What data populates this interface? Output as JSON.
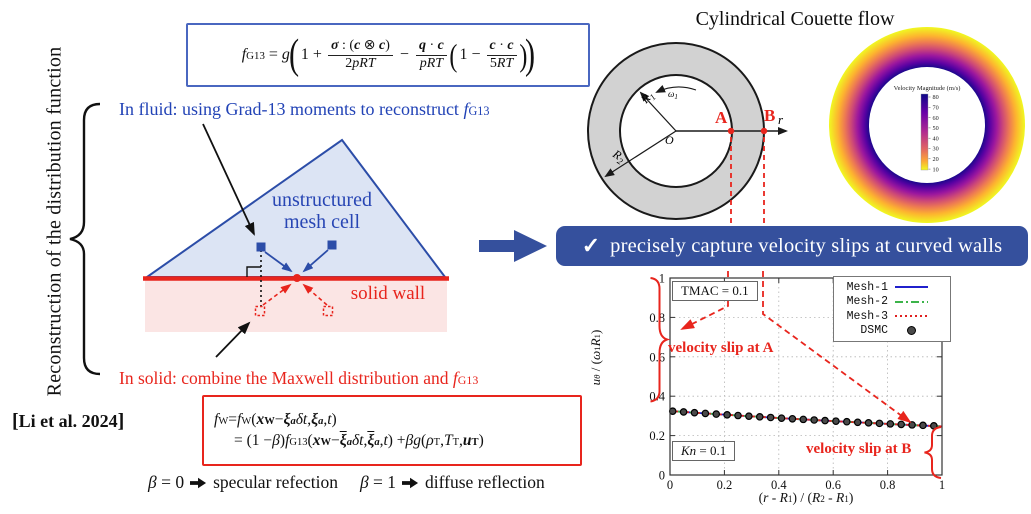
{
  "left_panel": {
    "vertical_label": "Reconstruction of the distribution function",
    "citation_open": "[",
    "citation": "Li et al. 2024",
    "citation_close": "]"
  },
  "fluid_note": {
    "lead": "In fluid: using Grad-13 moments to reconstruct ",
    "fsegs": [
      {
        "t": "f",
        "i": 1,
        "sub": "G13"
      }
    ]
  },
  "solid_note": {
    "lead": "In solid: combine the Maxwell distribution and ",
    "fsegs": [
      {
        "t": "f",
        "i": 1,
        "sub": "G13"
      }
    ]
  },
  "diagram": {
    "mesh_line1": "unstructured",
    "mesh_line2": "mesh cell",
    "wall_label": "solid wall"
  },
  "equations": {
    "g13": {
      "lead": [
        {
          "t": "f",
          "i": 1,
          "sub": "G13"
        },
        {
          "t": " = "
        },
        {
          "t": "g",
          "i": 1
        }
      ],
      "one_plus": "1 +",
      "frac1": {
        "num": [
          {
            "t": "σ",
            "i": 1,
            "b": 1
          },
          {
            "t": " : ("
          },
          {
            "t": "c",
            "i": 1,
            "b": 1
          },
          {
            "t": " ⊗ "
          },
          {
            "t": "c",
            "i": 1,
            "b": 1
          },
          {
            "t": ")"
          }
        ],
        "den": [
          {
            "t": "2"
          },
          {
            "t": "pRT",
            "i": 1
          }
        ]
      },
      "minus": "−",
      "frac2": {
        "num": [
          {
            "t": "q",
            "i": 1,
            "b": 1
          },
          {
            "t": " · "
          },
          {
            "t": "c",
            "i": 1,
            "b": 1
          }
        ],
        "den": [
          {
            "t": "pRT",
            "i": 1
          }
        ]
      },
      "one_minus": "1 −",
      "frac3": {
        "num": [
          {
            "t": "c",
            "i": 1,
            "b": 1
          },
          {
            "t": " · "
          },
          {
            "t": "c",
            "i": 1,
            "b": 1
          }
        ],
        "den": [
          {
            "t": "5"
          },
          {
            "t": "RT",
            "i": 1
          }
        ]
      }
    },
    "wall": {
      "line1": [
        {
          "t": "f",
          "i": 1,
          "sub": "W"
        },
        {
          "t": " = "
        },
        {
          "t": "f",
          "i": 1,
          "sub": "W"
        },
        {
          "t": "("
        },
        {
          "t": "x",
          "i": 1,
          "b": 1,
          "sub": "W"
        },
        {
          "t": " − "
        },
        {
          "t": "ξ",
          "i": 1,
          "b": 1,
          "sub": "a",
          "subi": 1
        },
        {
          "t": "δt",
          "i": 1
        },
        {
          "t": ", "
        },
        {
          "t": "ξ",
          "i": 1,
          "b": 1,
          "sub": "a",
          "subi": 1
        },
        {
          "t": ", "
        },
        {
          "t": "t",
          "i": 1
        },
        {
          "t": ")"
        }
      ],
      "line2": [
        {
          "t": "= (1 − "
        },
        {
          "t": "β",
          "i": 1
        },
        {
          "t": ")"
        },
        {
          "t": "f",
          "i": 1,
          "sub": "G13"
        },
        {
          "t": "("
        },
        {
          "t": "x",
          "i": 1,
          "b": 1,
          "sub": "W"
        },
        {
          "t": " − "
        },
        {
          "t": "ξ",
          "i": 1,
          "b": 1,
          "bar": 1,
          "sub": "a",
          "subi": 1
        },
        {
          "t": "δt",
          "i": 1
        },
        {
          "t": ", "
        },
        {
          "t": "ξ",
          "i": 1,
          "b": 1,
          "bar": 1,
          "sub": "a",
          "subi": 1
        },
        {
          "t": ", "
        },
        {
          "t": "t",
          "i": 1
        },
        {
          "t": ") + "
        },
        {
          "t": "βg",
          "i": 1
        },
        {
          "t": "("
        },
        {
          "t": "ρ",
          "i": 1,
          "sub": "T"
        },
        {
          "t": ", "
        },
        {
          "t": "T",
          "i": 1,
          "sub": "T"
        },
        {
          "t": ", "
        },
        {
          "t": "u",
          "i": 1,
          "b": 1,
          "sub": "T"
        },
        {
          "t": ")"
        }
      ]
    },
    "beta": {
      "b0": [
        {
          "t": "β",
          "i": 1
        },
        {
          "t": " = 0"
        }
      ],
      "spec": "specular refection",
      "b1": [
        {
          "t": "β",
          "i": 1
        },
        {
          "t": " = 1"
        }
      ],
      "diff": "diffuse reflection"
    }
  },
  "couette": {
    "title": "Cylindrical Couette flow",
    "labels": {
      "o": "O",
      "a": "A",
      "b": "B",
      "r": "r",
      "r1": "R",
      "r1_sub": "1",
      "r2": "R",
      "r2_sub": "2",
      "omega": "ω",
      "omega_sub": "1"
    }
  },
  "colormap": {
    "title": "Velocity Magnitude (m/s)",
    "ticks": [
      80,
      70,
      60,
      50,
      40,
      30,
      20,
      10
    ]
  },
  "banner": {
    "check": "✓",
    "text": "precisely capture velocity slips at curved walls"
  },
  "chart_data": {
    "type": "line",
    "title": "",
    "xlabel": "(r - R1) / (R2 - R1)",
    "ylabel": "u_theta / (omega_1 R_1)",
    "xlabel_segs": [
      {
        "t": "("
      },
      {
        "t": "r",
        "i": 1
      },
      {
        "t": " - "
      },
      {
        "t": "R",
        "i": 1,
        "sub": "1"
      },
      {
        "t": ") / ("
      },
      {
        "t": "R",
        "i": 1,
        "sub": "2"
      },
      {
        "t": " - "
      },
      {
        "t": "R",
        "i": 1,
        "sub": "1"
      },
      {
        "t": ")"
      }
    ],
    "ylabel_segs": [
      {
        "t": "u",
        "i": 1,
        "sub": "θ",
        "subi": 1
      },
      {
        "t": " / ("
      },
      {
        "t": "ω",
        "i": 1,
        "sub": "1"
      },
      {
        "t": "R",
        "i": 1,
        "sub": "1"
      },
      {
        "t": ")"
      }
    ],
    "xlim": [
      0,
      1
    ],
    "ylim": [
      0,
      1
    ],
    "xticks": [
      0,
      0.2,
      0.4,
      0.6,
      0.8,
      1
    ],
    "yticks": [
      0,
      0.2,
      0.4,
      0.6,
      0.8,
      1
    ],
    "grid": true,
    "legend_position": "top-right",
    "x": [
      0,
      0.05,
      0.1,
      0.15,
      0.2,
      0.25,
      0.3,
      0.35,
      0.4,
      0.45,
      0.5,
      0.55,
      0.6,
      0.65,
      0.7,
      0.75,
      0.8,
      0.85,
      0.9,
      0.95,
      1
    ],
    "u": [
      0.325,
      0.3202,
      0.3155,
      0.3109,
      0.3064,
      0.302,
      0.2977,
      0.2935,
      0.2893,
      0.2853,
      0.2813,
      0.2775,
      0.2737,
      0.27,
      0.2664,
      0.2629,
      0.2594,
      0.2561,
      0.2528,
      0.2496,
      0.2465
    ],
    "series": [
      {
        "name": "Mesh-1",
        "color": "#2020cc",
        "style": "solid",
        "values_shared": true
      },
      {
        "name": "Mesh-2",
        "color": "#3cb44a",
        "style": "dashdot",
        "values_shared": true
      },
      {
        "name": "Mesh-3",
        "color": "#e02020",
        "style": "dotted",
        "values_shared": true
      }
    ],
    "dsmc": {
      "name": "DSMC",
      "x": [
        0.01,
        0.05,
        0.09,
        0.13,
        0.17,
        0.21,
        0.25,
        0.29,
        0.33,
        0.37,
        0.41,
        0.45,
        0.49,
        0.53,
        0.57,
        0.61,
        0.65,
        0.69,
        0.73,
        0.77,
        0.81,
        0.85,
        0.89,
        0.93,
        0.97
      ],
      "values": [
        0.324,
        0.3202,
        0.3164,
        0.3127,
        0.3091,
        0.3055,
        0.302,
        0.2986,
        0.2952,
        0.2919,
        0.2886,
        0.2854,
        0.2823,
        0.2792,
        0.2762,
        0.2733,
        0.2704,
        0.2676,
        0.2648,
        0.2621,
        0.2595,
        0.2569,
        0.2544,
        0.252,
        0.2496
      ],
      "marker": "circle"
    },
    "annotations": {
      "tmac": "TMAC = 0.1",
      "kn_segs": [
        {
          "t": "Kn",
          "i": 1
        },
        {
          "t": " = 0.1"
        }
      ],
      "slip_a": "velocity slip at A",
      "slip_b": "velocity slip at B"
    }
  }
}
